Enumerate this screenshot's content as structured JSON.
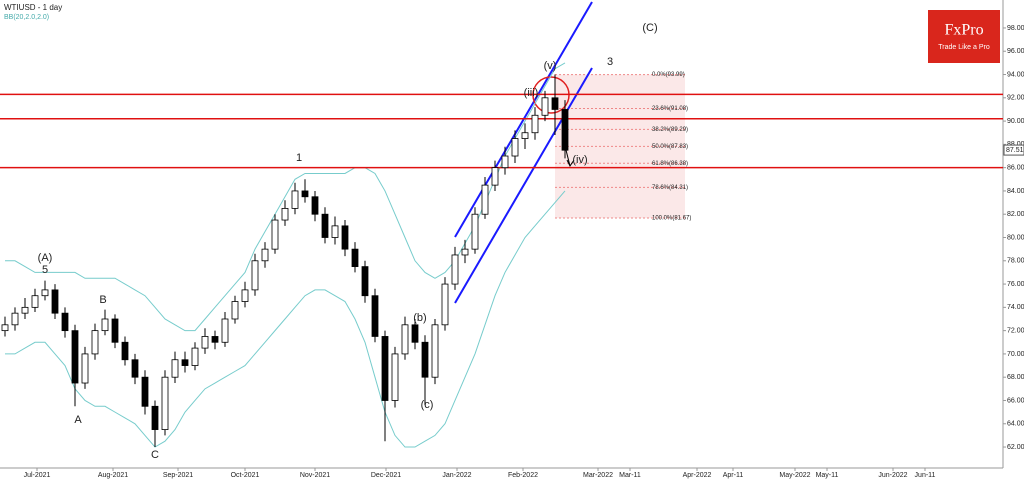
{
  "chart_data": {
    "type": "candlestick",
    "title": "WTIUSD - 1 day",
    "subtitle": "BB(20,2.0,2.0)",
    "brand": "FxPro",
    "tagline": "Trade Like a Pro",
    "ylim": [
      60.2,
      100.23
    ],
    "yticks": [
      {
        "value": 62,
        "label": "62.00"
      },
      {
        "value": 64,
        "label": "64.00"
      },
      {
        "value": 66,
        "label": "66.00"
      },
      {
        "value": 68,
        "label": "68.00"
      },
      {
        "value": 70,
        "label": "70.00"
      },
      {
        "value": 72,
        "label": "72.00"
      },
      {
        "value": 74,
        "label": "74.00"
      },
      {
        "value": 76,
        "label": "76.00"
      },
      {
        "value": 78,
        "label": "78.00"
      },
      {
        "value": 80,
        "label": "80.00"
      },
      {
        "value": 82,
        "label": "82.00"
      },
      {
        "value": 84,
        "label": "84.00"
      },
      {
        "value": 86,
        "label": "86.00"
      },
      {
        "value": 88,
        "label": "88.00"
      },
      {
        "value": 90,
        "label": "90.00"
      },
      {
        "value": 92,
        "label": "92.00"
      },
      {
        "value": 94,
        "label": "94.00"
      },
      {
        "value": 96,
        "label": "96.00"
      },
      {
        "value": 98,
        "label": "98.00"
      }
    ],
    "last_price": {
      "value": 87.51,
      "label": "87.51"
    },
    "xtick_labels": [
      "Jul-2021",
      "Aug-2021",
      "Sep-2021",
      "Oct-2021",
      "Nov-2021",
      "Dec-2021",
      "Jan-2022",
      "Feb-2022",
      "Mar-2022",
      "Mar-11",
      "Apr-2022",
      "Apr-11",
      "May-2022",
      "May-11",
      "Jun-2022",
      "Jun-11"
    ],
    "candles": [
      [
        72.0,
        73.2,
        71.5,
        72.5
      ],
      [
        72.5,
        74.0,
        72.0,
        73.5
      ],
      [
        73.5,
        74.8,
        73.0,
        74.0
      ],
      [
        74.0,
        75.6,
        73.6,
        75.0
      ],
      [
        75.0,
        76.3,
        74.6,
        75.5
      ],
      [
        75.5,
        76.0,
        73.0,
        73.5
      ],
      [
        73.5,
        74.0,
        71.4,
        72.0
      ],
      [
        72.0,
        72.5,
        65.5,
        67.5
      ],
      [
        67.5,
        70.6,
        67.0,
        70.0
      ],
      [
        70.0,
        72.6,
        69.5,
        72.0
      ],
      [
        72.0,
        73.8,
        71.6,
        73.0
      ],
      [
        73.0,
        73.4,
        70.5,
        71.0
      ],
      [
        71.0,
        71.5,
        69.0,
        69.5
      ],
      [
        69.5,
        70.0,
        67.4,
        68.0
      ],
      [
        68.0,
        68.6,
        64.8,
        65.5
      ],
      [
        65.5,
        66.0,
        62.0,
        63.5
      ],
      [
        63.5,
        68.6,
        63.0,
        68.0
      ],
      [
        68.0,
        70.2,
        67.5,
        69.5
      ],
      [
        69.5,
        70.2,
        68.4,
        69.0
      ],
      [
        69.0,
        71.0,
        68.6,
        70.5
      ],
      [
        70.5,
        72.2,
        70.0,
        71.5
      ],
      [
        71.5,
        72.0,
        70.4,
        71.0
      ],
      [
        71.0,
        73.6,
        70.6,
        73.0
      ],
      [
        73.0,
        75.0,
        72.6,
        74.5
      ],
      [
        74.5,
        76.2,
        74.0,
        75.5
      ],
      [
        75.5,
        78.6,
        75.0,
        78.0
      ],
      [
        78.0,
        79.6,
        77.4,
        79.0
      ],
      [
        79.0,
        82.0,
        78.6,
        81.5
      ],
      [
        81.5,
        83.2,
        81.0,
        82.5
      ],
      [
        82.5,
        84.7,
        82.0,
        84.0
      ],
      [
        84.0,
        85.0,
        83.0,
        83.5
      ],
      [
        83.5,
        84.0,
        81.4,
        82.0
      ],
      [
        82.0,
        82.6,
        79.5,
        80.0
      ],
      [
        80.0,
        81.8,
        79.4,
        81.0
      ],
      [
        81.0,
        81.5,
        78.4,
        79.0
      ],
      [
        79.0,
        79.6,
        77.0,
        77.5
      ],
      [
        77.5,
        78.0,
        74.4,
        75.0
      ],
      [
        75.0,
        75.6,
        71.0,
        71.5
      ],
      [
        71.5,
        72.0,
        62.5,
        66.0
      ],
      [
        66.0,
        70.6,
        65.4,
        70.0
      ],
      [
        70.0,
        73.2,
        69.5,
        72.5
      ],
      [
        72.5,
        73.0,
        70.4,
        71.0
      ],
      [
        71.0,
        71.6,
        65.6,
        68.0
      ],
      [
        68.0,
        73.0,
        67.4,
        72.5
      ],
      [
        72.5,
        76.6,
        72.0,
        76.0
      ],
      [
        76.0,
        79.2,
        75.5,
        78.5
      ],
      [
        78.5,
        79.8,
        77.8,
        79.0
      ],
      [
        79.0,
        82.6,
        78.6,
        82.0
      ],
      [
        82.0,
        85.2,
        81.6,
        84.5
      ],
      [
        84.5,
        86.6,
        84.0,
        86.0
      ],
      [
        86.0,
        87.8,
        85.4,
        87.0
      ],
      [
        87.0,
        89.2,
        86.4,
        88.5
      ],
      [
        88.5,
        89.8,
        87.6,
        89.0
      ],
      [
        89.0,
        91.2,
        88.4,
        90.5
      ],
      [
        90.5,
        92.6,
        90.0,
        92.0
      ],
      [
        92.0,
        94.0,
        88.8,
        91.0
      ],
      [
        91.0,
        91.8,
        86.8,
        87.5
      ]
    ],
    "bb_upper": [
      78,
      78,
      77.5,
      77,
      77,
      77,
      77,
      77,
      76.5,
      76.5,
      76.5,
      76.5,
      76,
      75.5,
      75,
      74,
      73,
      72.5,
      72,
      72,
      73,
      74,
      75,
      76,
      77,
      79,
      80.5,
      82,
      83.5,
      85,
      85.5,
      85.5,
      85.5,
      85.5,
      85.5,
      86,
      86,
      85.5,
      84,
      82,
      80,
      78,
      77,
      76.5,
      77,
      78,
      79.5,
      81,
      83,
      85,
      87,
      88.5,
      90,
      91.5,
      93,
      94.5,
      95
    ],
    "bb_lower": [
      70,
      70,
      70.5,
      71,
      71,
      70,
      69,
      67,
      66,
      65.5,
      65.5,
      65,
      64.5,
      64,
      63,
      62,
      62.5,
      63.5,
      65,
      66,
      67,
      67.5,
      68,
      68.5,
      69,
      70,
      71,
      72,
      73,
      74,
      75,
      75.5,
      75.5,
      75,
      74.5,
      73,
      71,
      68,
      65,
      63,
      62,
      62,
      62.5,
      63,
      64,
      66,
      68,
      70,
      72.5,
      75,
      77,
      78.5,
      80,
      81,
      82,
      83,
      84
    ],
    "levels": [
      92.3,
      90.2,
      86.0
    ],
    "fib_levels": [
      {
        "value": 93.99,
        "label": "0.0%(93.99)"
      },
      {
        "value": 91.08,
        "label": "23.6%(91.08)"
      },
      {
        "value": 89.29,
        "label": "38.2%(89.29)"
      },
      {
        "value": 87.83,
        "label": "50.0%(87.83)"
      },
      {
        "value": 86.38,
        "label": "61.8%(86.38)"
      },
      {
        "value": 84.31,
        "label": "78.6%(84.31)"
      },
      {
        "value": 81.67,
        "label": "100.0%(81.67)"
      }
    ],
    "annotations": [
      "(A)",
      "5",
      "A",
      "B",
      "C",
      "1",
      "3",
      "(C)",
      "(v)",
      "(iii)",
      "(iv)",
      "(b)",
      "(c)"
    ]
  }
}
